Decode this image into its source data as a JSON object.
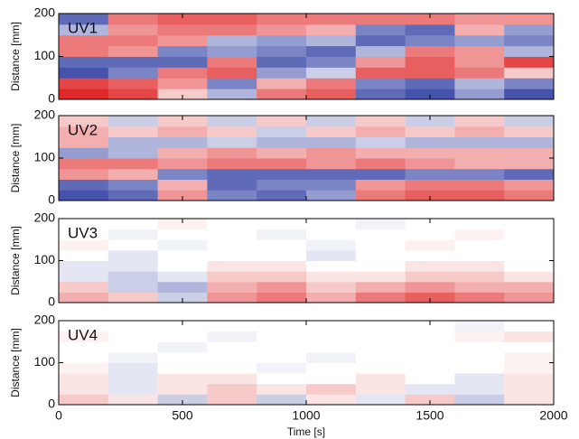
{
  "chart_data": [
    {
      "type": "heatmap",
      "title": "UV1",
      "ylabel": "Distance [mm]",
      "x": [
        100,
        300,
        500,
        700,
        900,
        1100,
        1300,
        1500,
        1700,
        1900
      ],
      "y": [
        12.5,
        37.5,
        62.5,
        87.5,
        112.5,
        137.5,
        162.5,
        187.5
      ],
      "values": [
        [
          0.8,
          0.7,
          0.2,
          -0.3,
          0.5,
          0.6,
          -0.6,
          -0.7,
          -0.4,
          -0.7
        ],
        [
          0.7,
          0.6,
          0.4,
          -0.5,
          0.3,
          0.5,
          -0.5,
          -0.6,
          -0.3,
          -0.5
        ],
        [
          -0.7,
          -0.5,
          0.5,
          0.6,
          -0.4,
          -0.2,
          0.6,
          0.6,
          0.5,
          0.2
        ],
        [
          -0.6,
          -0.6,
          -0.6,
          0.5,
          -0.6,
          -0.5,
          0.4,
          0.6,
          0.4,
          0.7
        ],
        [
          0.5,
          0.4,
          -0.5,
          -0.4,
          -0.5,
          -0.6,
          -0.3,
          0.5,
          0.4,
          -0.3
        ],
        [
          0.5,
          0.5,
          0.4,
          -0.3,
          -0.4,
          -0.3,
          -0.6,
          -0.5,
          -0.4,
          -0.5
        ],
        [
          -0.3,
          0.4,
          0.5,
          0.5,
          0.4,
          0.3,
          -0.5,
          -0.6,
          0.3,
          -0.4
        ],
        [
          -0.6,
          0.5,
          0.6,
          0.6,
          0.5,
          0.5,
          0.5,
          0.5,
          0.4,
          0.4
        ]
      ],
      "colors": {
        "negative": "#2b3aa0",
        "positive": "#e02a2a"
      },
      "xlim": [
        0,
        2000
      ],
      "xticks": [
        0,
        500,
        1000,
        1500,
        2000
      ],
      "ylim": [
        0,
        200
      ],
      "yticks": [
        0,
        100,
        200
      ]
    },
    {
      "type": "heatmap",
      "title": "UV2",
      "ylabel": "Distance [mm]",
      "x": [
        100,
        300,
        500,
        700,
        900,
        1100,
        1300,
        1500,
        1700,
        1900
      ],
      "y": [
        12.5,
        37.5,
        62.5,
        87.5,
        112.5,
        137.5,
        162.5,
        187.5
      ],
      "values": [
        [
          -0.7,
          -0.6,
          0.4,
          -0.5,
          -0.6,
          -0.4,
          0.5,
          0.6,
          0.6,
          0.5
        ],
        [
          -0.6,
          -0.5,
          0.3,
          -0.6,
          -0.5,
          -0.5,
          0.4,
          0.5,
          0.5,
          0.4
        ],
        [
          0.4,
          0.3,
          -0.5,
          -0.6,
          -0.6,
          -0.6,
          -0.6,
          -0.5,
          -0.5,
          -0.6
        ],
        [
          0.5,
          0.5,
          0.4,
          0.5,
          0.5,
          0.4,
          0.5,
          0.4,
          0.3,
          0.3
        ],
        [
          -0.4,
          -0.3,
          0.3,
          0.4,
          0.3,
          0.4,
          0.3,
          0.3,
          0.3,
          0.3
        ],
        [
          0.3,
          -0.3,
          -0.3,
          -0.2,
          -0.3,
          -0.3,
          -0.2,
          -0.3,
          -0.3,
          -0.3
        ],
        [
          0.3,
          0.2,
          0.3,
          0.2,
          -0.2,
          0.2,
          0.3,
          0.2,
          0.3,
          0.2
        ],
        [
          0.2,
          -0.2,
          0.2,
          -0.2,
          0.2,
          -0.2,
          0.2,
          -0.2,
          0.2,
          -0.2
        ]
      ],
      "colors": {
        "negative": "#2b3aa0",
        "positive": "#e02a2a"
      },
      "xlim": [
        0,
        2000
      ],
      "xticks": [
        0,
        500,
        1000,
        1500,
        2000
      ],
      "ylim": [
        0,
        200
      ],
      "yticks": [
        0,
        100,
        200
      ]
    },
    {
      "type": "heatmap",
      "title": "UV3",
      "ylabel": "Distance [mm]",
      "x": [
        100,
        300,
        500,
        700,
        900,
        1100,
        1300,
        1500,
        1700,
        1900
      ],
      "y": [
        12.5,
        37.5,
        62.5,
        87.5,
        112.5,
        137.5,
        162.5,
        187.5
      ],
      "values": [
        [
          0.3,
          0.2,
          -0.2,
          0.4,
          0.5,
          0.3,
          0.5,
          0.6,
          0.5,
          0.4
        ],
        [
          0.2,
          -0.2,
          -0.3,
          0.3,
          0.4,
          0.2,
          0.3,
          0.4,
          0.3,
          0.3
        ],
        [
          -0.1,
          -0.2,
          -0.1,
          0.2,
          0.2,
          0.1,
          0.1,
          0.2,
          0.2,
          0.1
        ],
        [
          -0.1,
          -0.1,
          0,
          0.1,
          0.1,
          0,
          0,
          0.1,
          0.1,
          0
        ],
        [
          0,
          -0.1,
          0,
          0,
          0,
          -0.1,
          0,
          0,
          0,
          0
        ],
        [
          0.05,
          0,
          -0.05,
          0,
          0,
          -0.05,
          0,
          0.05,
          0,
          0
        ],
        [
          0,
          -0.05,
          0,
          0,
          -0.05,
          0,
          0,
          0,
          0.05,
          0
        ],
        [
          0,
          0,
          0.05,
          0,
          0,
          0,
          -0.05,
          0,
          0,
          0
        ]
      ],
      "colors": {
        "negative": "#2b3aa0",
        "positive": "#e02a2a"
      },
      "xlim": [
        0,
        2000
      ],
      "xticks": [
        0,
        500,
        1000,
        1500,
        2000
      ],
      "ylim": [
        0,
        200
      ],
      "yticks": [
        0,
        100,
        200
      ]
    },
    {
      "type": "heatmap",
      "title": "UV4",
      "ylabel": "Distance [mm]",
      "xlabel": "Time [s]",
      "x": [
        100,
        300,
        500,
        700,
        900,
        1100,
        1300,
        1500,
        1700,
        1900
      ],
      "y": [
        12.5,
        37.5,
        62.5,
        87.5,
        112.5,
        137.5,
        162.5,
        187.5
      ],
      "values": [
        [
          0.2,
          0.1,
          -0.2,
          0.2,
          -0.2,
          0.1,
          -0.1,
          0.2,
          -0.2,
          0.1
        ],
        [
          0.1,
          -0.1,
          0.1,
          0.2,
          0.1,
          0.2,
          0.1,
          -0.1,
          -0.1,
          0.1
        ],
        [
          0.1,
          -0.1,
          0.1,
          0.1,
          0,
          0,
          0.1,
          0,
          -0.1,
          0.1
        ],
        [
          0.05,
          -0.1,
          0,
          0,
          -0.05,
          0,
          0,
          0,
          0,
          0.05
        ],
        [
          0,
          -0.05,
          0,
          0,
          0,
          -0.05,
          0,
          0,
          0,
          0.05
        ],
        [
          0,
          0,
          -0.05,
          0,
          0,
          0,
          0,
          0,
          0,
          0
        ],
        [
          0.05,
          0,
          0,
          -0.05,
          0,
          0,
          0,
          0,
          0.05,
          0.1
        ],
        [
          0,
          0,
          0,
          0,
          0,
          0,
          0,
          0,
          -0.05,
          0
        ]
      ],
      "colors": {
        "negative": "#2b3aa0",
        "positive": "#e02a2a"
      },
      "xlim": [
        0,
        2000
      ],
      "xticks": [
        0,
        500,
        1000,
        1500,
        2000
      ],
      "ylim": [
        0,
        200
      ],
      "yticks": [
        0,
        100,
        200
      ]
    }
  ]
}
